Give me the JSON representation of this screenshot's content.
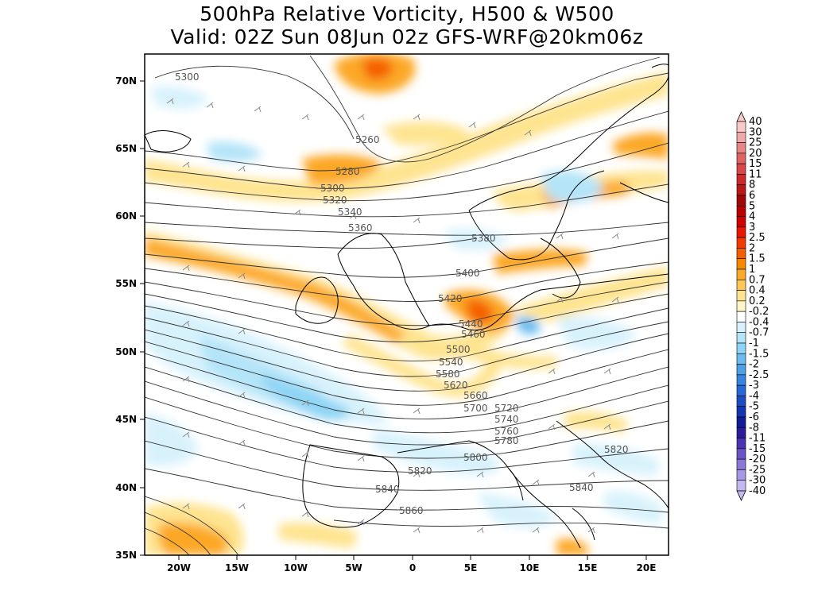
{
  "title_line1": "500hPa Relative Vorticity, H500 & W500",
  "title_line2": "Valid: 02Z Sun 08Jun 02z GFS-WRF@20km06z",
  "map": {
    "lat_labels": [
      "70N",
      "65N",
      "60N",
      "55N",
      "50N",
      "45N",
      "40N",
      "35N"
    ],
    "lon_labels": [
      "20W",
      "15W",
      "10W",
      "5W",
      "0",
      "5E",
      "10E",
      "15E",
      "20E"
    ],
    "contour_labels": [
      "5300",
      "5260",
      "5280",
      "5300",
      "5320",
      "5340",
      "5360",
      "5380",
      "5400",
      "5420",
      "5440",
      "5460",
      "5500",
      "5540",
      "5580",
      "5620",
      "5660",
      "5700",
      "5720",
      "5740",
      "5760",
      "5780",
      "5800",
      "5820",
      "5820",
      "5840",
      "5840",
      "5860"
    ]
  },
  "legend": {
    "labels": [
      "40",
      "30",
      "25",
      "20",
      "15",
      "11",
      "8",
      "6",
      "5",
      "4",
      "3",
      "2.5",
      "2",
      "1.5",
      "1",
      "0.7",
      "0.4",
      "0.2",
      "-0.2",
      "-0.4",
      "-0.7",
      "-1",
      "-1.5",
      "-2",
      "-2.5",
      "-3",
      "-4",
      "-5",
      "-6",
      "-8",
      "-11",
      "-15",
      "-20",
      "-25",
      "-30",
      "-40"
    ],
    "colors": [
      "#f7c9c9",
      "#f0a8a8",
      "#e88585",
      "#e06464",
      "#d84848",
      "#cc2a2a",
      "#b81818",
      "#a00808",
      "#b80000",
      "#d00000",
      "#e81800",
      "#f03c00",
      "#f46000",
      "#f88800",
      "#fca828",
      "#fec858",
      "#fee490",
      "#fff6c8",
      "#ffffff",
      "#d8f2fc",
      "#b4e4f8",
      "#8ed4f4",
      "#6cbcf0",
      "#4ca0e8",
      "#3884e0",
      "#2868d4",
      "#1c4cc4",
      "#1434b0",
      "#101c98",
      "#2a1c9c",
      "#4a34b4",
      "#6a54c8",
      "#8a78d8",
      "#a698e4",
      "#c4b8f0"
    ]
  }
}
